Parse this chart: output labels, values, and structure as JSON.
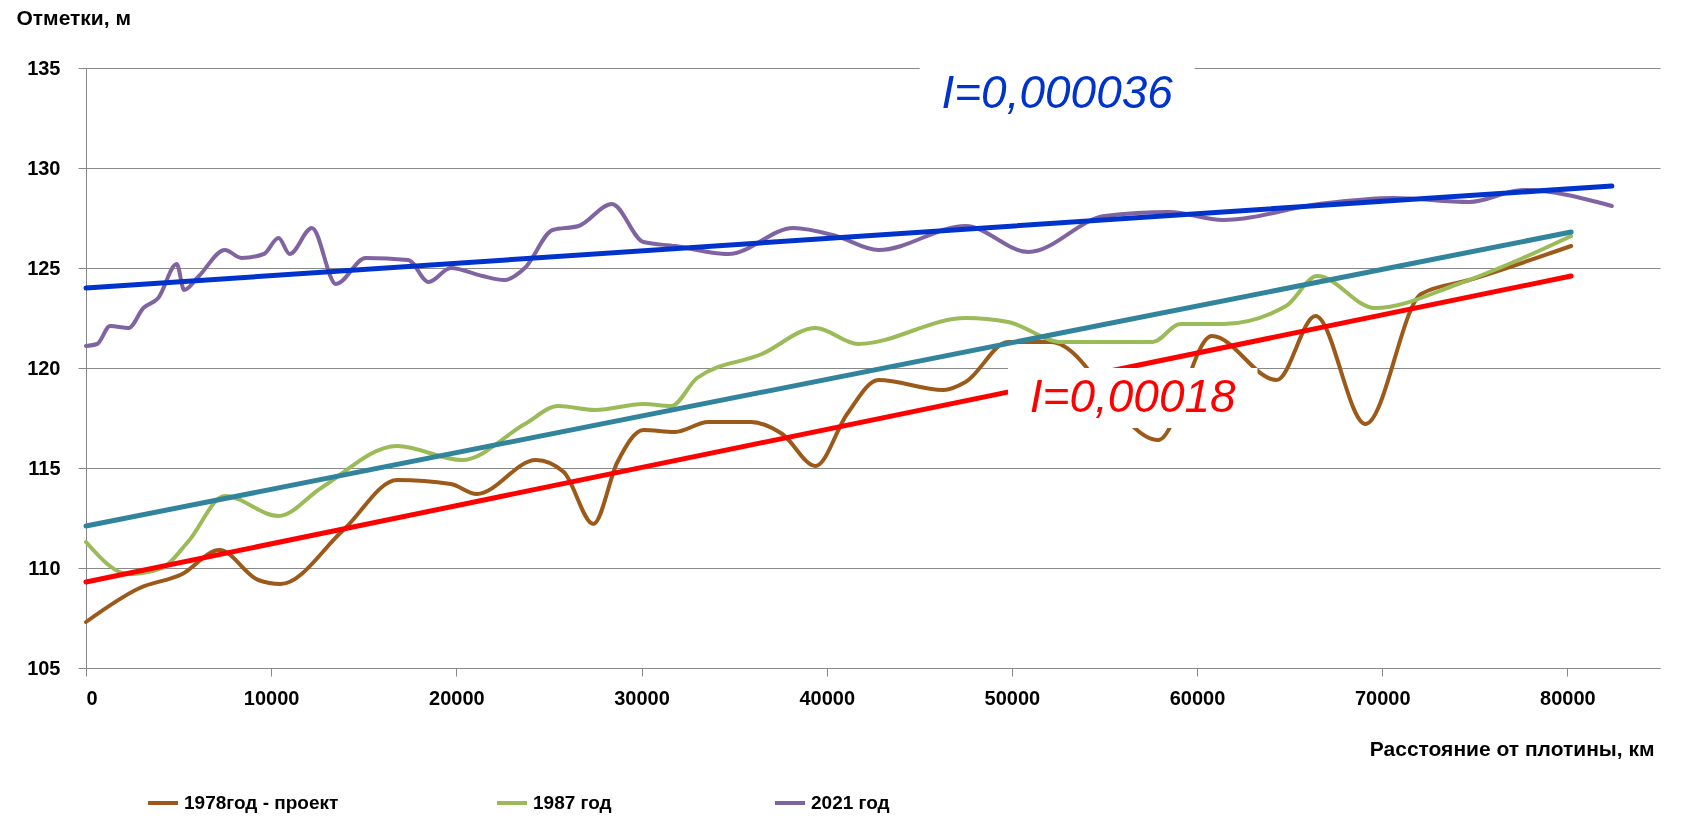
{
  "chart_data": {
    "type": "line",
    "xlabel": "Расстояние от плотины, км",
    "ylabel": "Отметки, м",
    "xlim": [
      0,
      85000
    ],
    "xticks": [
      0,
      10000,
      20000,
      30000,
      40000,
      50000,
      60000,
      70000,
      80000
    ],
    "ylim": [
      105,
      135
    ],
    "yticks": [
      105,
      110,
      115,
      120,
      125,
      130,
      135
    ],
    "grid": "y",
    "legend": "bottom",
    "marker": "none",
    "line_style": "solid",
    "series": [
      {
        "name": "1978год - проект",
        "color": "#9c5a1a",
        "x": [
          0,
          2900,
          5200,
          7200,
          9300,
          10500,
          13900,
          16800,
          19700,
          21100,
          24300,
          25800,
          27400,
          28700,
          30100,
          31800,
          33600,
          35900,
          37600,
          39400,
          41100,
          42800,
          46300,
          47500,
          49800,
          52100,
          57900,
          60800,
          64300,
          66400,
          69100,
          72100,
          74700,
          80200
        ],
        "values": [
          107.3,
          109.0,
          109.7,
          110.9,
          109.4,
          109.2,
          111.9,
          114.4,
          114.2,
          113.7,
          115.4,
          114.8,
          112.2,
          115.3,
          116.9,
          116.8,
          117.3,
          117.3,
          116.7,
          115.1,
          117.7,
          119.4,
          118.9,
          119.3,
          121.3,
          121.3,
          116.4,
          121.6,
          119.4,
          122.6,
          117.2,
          123.7,
          124.4,
          126.1
        ]
      },
      {
        "name": "1987  год",
        "color": "#9bbb59",
        "x": [
          0,
          2300,
          4100,
          5500,
          7500,
          10400,
          12700,
          16800,
          20300,
          23700,
          25500,
          27500,
          30100,
          31600,
          33000,
          36500,
          39400,
          41700,
          47500,
          49800,
          52700,
          57600,
          59100,
          61400,
          64800,
          66500,
          69600,
          74100,
          77600,
          80200
        ],
        "values": [
          111.3,
          109.7,
          110.0,
          111.3,
          113.6,
          112.6,
          114.0,
          116.1,
          115.4,
          117.2,
          118.1,
          117.9,
          118.2,
          118.1,
          119.5,
          120.7,
          122.0,
          121.2,
          122.5,
          122.3,
          121.3,
          121.3,
          122.2,
          122.2,
          123.1,
          124.6,
          123.0,
          124.2,
          125.5,
          126.6
        ]
      },
      {
        "name": "2021 год",
        "color": "#8064a2",
        "x": [
          0,
          600,
          1300,
          2300,
          3100,
          3900,
          4900,
          5300,
          6100,
          7500,
          8400,
          9600,
          10400,
          11000,
          12200,
          13500,
          15100,
          17400,
          18500,
          19700,
          21400,
          22600,
          23700,
          25200,
          26600,
          28400,
          30100,
          31800,
          34700,
          38200,
          40500,
          42800,
          47500,
          50900,
          55000,
          58500,
          61400,
          66600,
          70600,
          74700,
          77600,
          82400
        ],
        "values": [
          121.1,
          121.2,
          122.1,
          122.0,
          123.0,
          123.5,
          125.2,
          123.9,
          124.6,
          125.9,
          125.5,
          125.7,
          126.5,
          125.7,
          127.0,
          124.2,
          125.5,
          125.4,
          124.3,
          125.0,
          124.6,
          124.4,
          125.0,
          126.9,
          127.1,
          128.2,
          126.3,
          126.1,
          125.7,
          127.0,
          126.6,
          125.9,
          127.1,
          125.8,
          127.6,
          127.8,
          127.4,
          128.2,
          128.5,
          128.3,
          128.9,
          128.1
        ]
      },
      {
        "color": "#0033cc",
        "x": [
          0,
          82400
        ],
        "values": [
          124.0,
          129.1
        ]
      },
      {
        "color": "#ff0000",
        "x": [
          0,
          80200
        ],
        "values": [
          109.3,
          124.6
        ]
      },
      {
        "color": "#31849b",
        "x": [
          0,
          80200
        ],
        "values": [
          112.1,
          126.8
        ]
      }
    ],
    "annotations": [
      "I=0,000036",
      "I=0,00018"
    ]
  }
}
